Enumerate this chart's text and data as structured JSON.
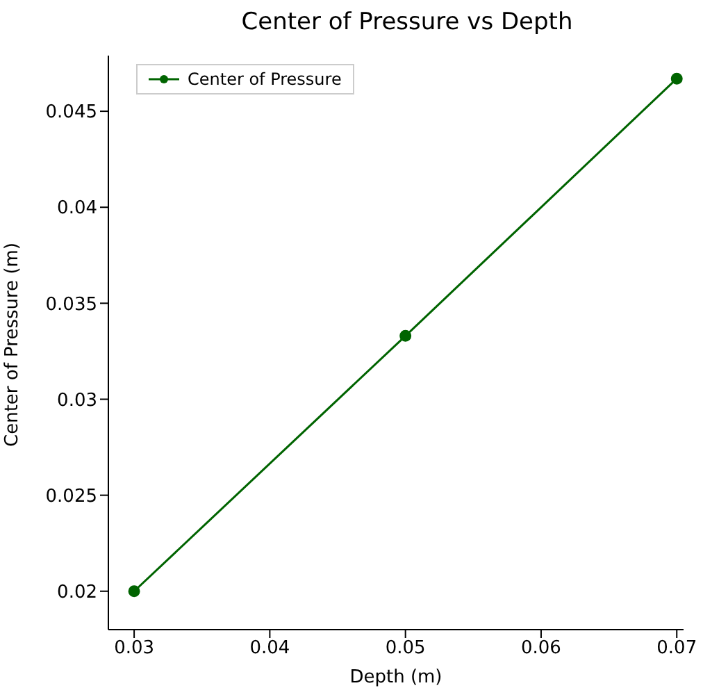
{
  "chart_data": {
    "type": "line",
    "title": "Center of Pressure vs Depth",
    "xlabel": "Depth (m)",
    "ylabel": "Center of Pressure (m)",
    "x": [
      0.03,
      0.05,
      0.07
    ],
    "series": [
      {
        "name": "Center of Pressure",
        "color": "#006400",
        "values": [
          0.02,
          0.0333,
          0.0467
        ]
      }
    ],
    "xlim": [
      0.0281,
      0.0705
    ],
    "xticks": [
      0.03,
      0.04,
      0.05,
      0.06,
      0.07
    ],
    "ylim": [
      0.018,
      0.0479
    ],
    "yticks": [
      0.02,
      0.025,
      0.03,
      0.035,
      0.04,
      0.045
    ],
    "marker": "circle",
    "line_style": "solid",
    "legend": "top left",
    "grid": false
  }
}
